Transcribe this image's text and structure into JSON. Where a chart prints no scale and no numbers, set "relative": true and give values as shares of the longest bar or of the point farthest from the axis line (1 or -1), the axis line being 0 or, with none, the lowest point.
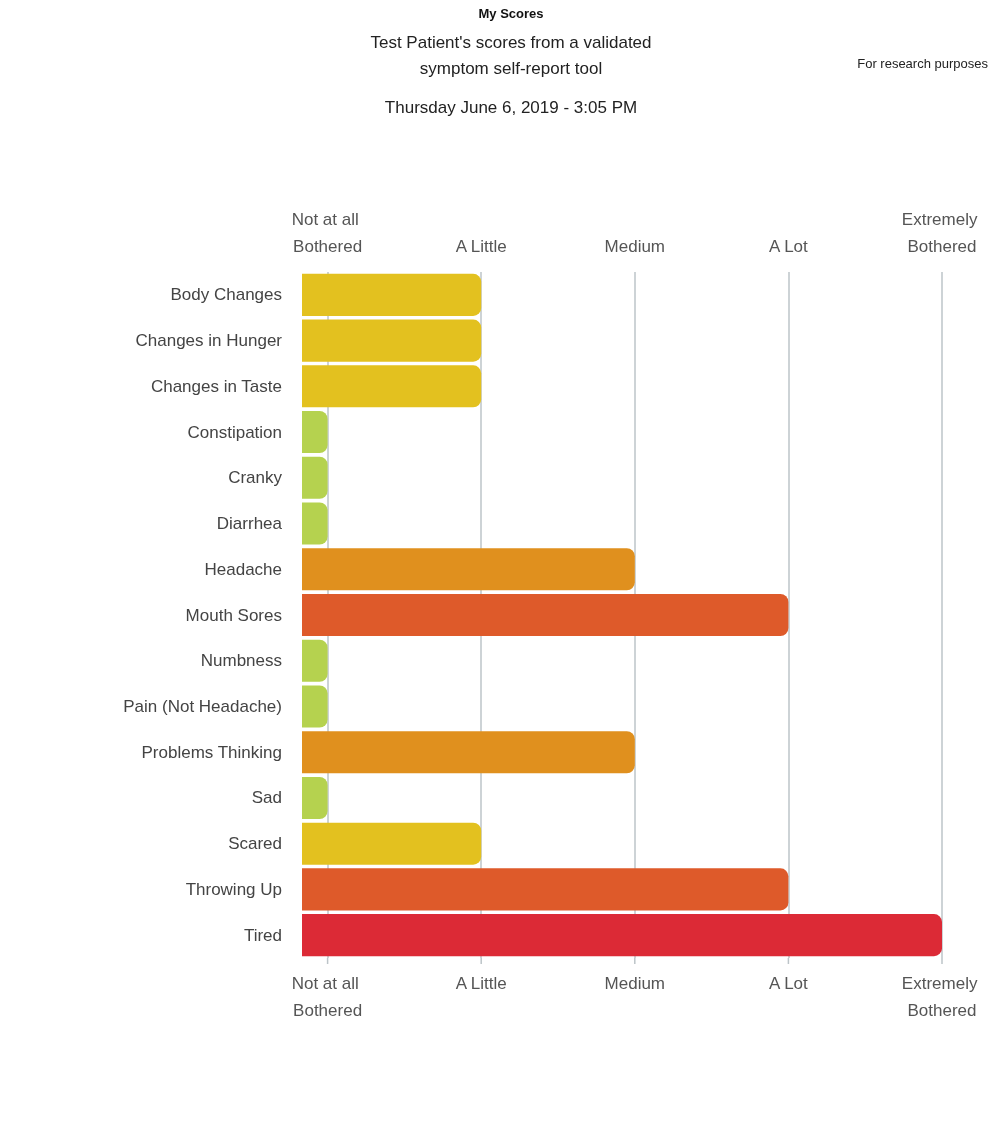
{
  "chart_data": {
    "type": "bar",
    "orientation": "horizontal",
    "relative": true,
    "title": "My Scores",
    "subtitle": "Test Patient's scores from a validated symptom self-report tool",
    "annotations": [
      "Thursday June 6, 2019 - 3:05 PM",
      "For research purposes"
    ],
    "categories": [
      "Body Changes",
      "Changes in Hunger",
      "Changes in Taste",
      "Constipation",
      "Cranky",
      "Diarrhea",
      "Headache",
      "Mouth Sores",
      "Numbness",
      "Pain (Not Headache)",
      "Problems Thinking",
      "Sad",
      "Scared",
      "Throwing Up",
      "Tired"
    ],
    "values": [
      0.28,
      0.28,
      0.28,
      0.04,
      0.04,
      0.04,
      0.52,
      0.76,
      0.04,
      0.04,
      0.52,
      0.04,
      0.28,
      0.76,
      1
    ],
    "colors": [
      "#e3c11f",
      "#e3c11f",
      "#e3c11f",
      "#b5d24f",
      "#b5d24f",
      "#b5d24f",
      "#e0901e",
      "#de5a2a",
      "#b5d24f",
      "#b5d24f",
      "#e0901e",
      "#b5d24f",
      "#e3c11f",
      "#de5a2a",
      "#dc2a36"
    ],
    "ref_lines": [
      {
        "axis": "x",
        "value": 0.04,
        "label": "Not at all Bothered",
        "color": "#bcc4c8"
      },
      {
        "axis": "x",
        "value": 0.28,
        "label": "A Little",
        "color": "#bcc4c8"
      },
      {
        "axis": "x",
        "value": 0.52,
        "label": "Medium",
        "color": "#bcc4c8"
      },
      {
        "axis": "x",
        "value": 0.76,
        "label": "A Lot",
        "color": "#bcc4c8"
      },
      {
        "axis": "x",
        "value": 1,
        "label": "Extremely Bothered",
        "color": "#bcc4c8"
      }
    ]
  }
}
